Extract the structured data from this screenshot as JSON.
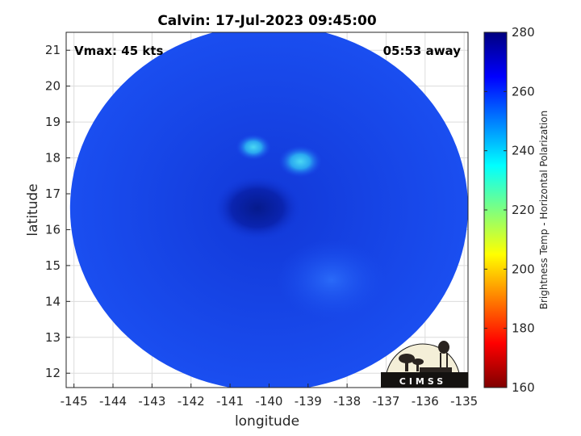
{
  "chart_data": {
    "type": "heatmap",
    "title": "Calvin: 17-Jul-2023 09:45:00",
    "xlabel": "longitude",
    "ylabel": "latitude",
    "xlim": [
      -145.2,
      -134.9
    ],
    "ylim": [
      11.6,
      21.5
    ],
    "xticks": [
      -145,
      -144,
      -143,
      -142,
      -141,
      -140,
      -139,
      -138,
      -137,
      -136,
      -135
    ],
    "yticks": [
      12,
      13,
      14,
      15,
      16,
      17,
      18,
      19,
      20,
      21
    ],
    "grid": true,
    "swath": {
      "center_lon": -140.0,
      "center_lat": 16.6,
      "radius_deg": 5.1,
      "base_value": 262
    },
    "features": [
      {
        "lon": -140.3,
        "lat": 16.6,
        "value": 272,
        "radius_deg": 1.1
      },
      {
        "lon": -139.2,
        "lat": 17.9,
        "value": 246,
        "radius_deg": 0.55
      },
      {
        "lon": -140.4,
        "lat": 18.3,
        "value": 250,
        "radius_deg": 0.45
      },
      {
        "lon": -138.4,
        "lat": 14.6,
        "value": 258,
        "radius_deg": 1.4
      }
    ],
    "annotations": {
      "vmax": "Vmax: 45 kts",
      "time_away": "05:53 away"
    },
    "colorbar": {
      "label": "Brightness Temp - Horizontal Polarization",
      "min": 160,
      "max": 280,
      "ticks": [
        160,
        180,
        200,
        220,
        240,
        260,
        280
      ],
      "colormap": [
        "#7f0000",
        "#ff0000",
        "#ff7f00",
        "#ffff00",
        "#7fff7f",
        "#00ffff",
        "#007fff",
        "#0000ff",
        "#00007f"
      ]
    },
    "logo": "CIMSS"
  }
}
